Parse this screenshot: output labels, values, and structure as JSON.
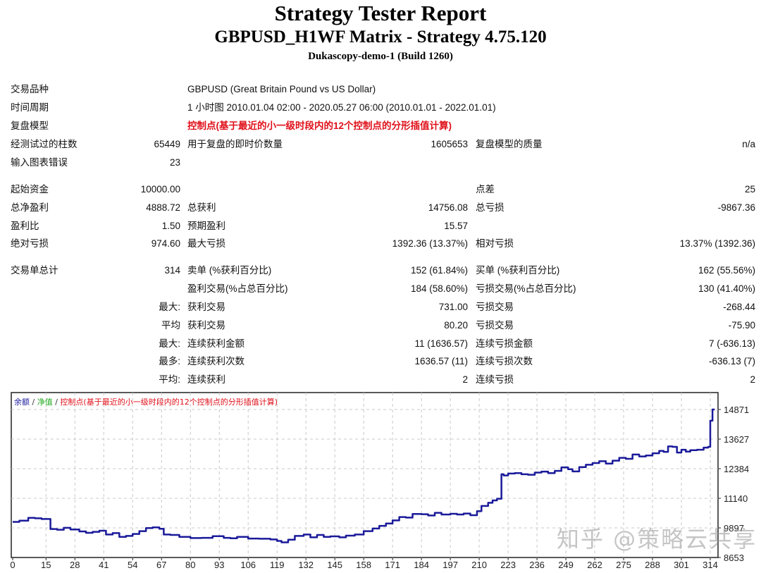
{
  "header": {
    "title": "Strategy Tester Report",
    "subtitle": "GBPUSD_H1WF Matrix - Strategy 4.75.120",
    "server": "Dukascopy-demo-1 (Build 1260)"
  },
  "settings": [
    {
      "label": "交易品种",
      "value": "GBPUSD (Great Britain Pound vs US Dollar)"
    },
    {
      "label": "时间周期",
      "value": "1 小时图 2010.01.04 02:00 - 2020.05.27 06:00 (2010.01.01 - 2022.01.01)"
    },
    {
      "label": "复盘模型",
      "value": "控制点(基于最近的小一级时段内的12个控制点的分形插值计算)"
    }
  ],
  "bars": {
    "label": "经测试过的柱数",
    "value": "65449",
    "label2": "用于复盘的即时价数量",
    "value2": "1605653",
    "label3": "复盘模型的质量",
    "value3": "n/a"
  },
  "errors": {
    "label": "输入图表错误",
    "value": "23"
  },
  "stats": {
    "initial_deposit": {
      "label": "起始资金",
      "value": "10000.00"
    },
    "spread": {
      "label": "点差",
      "value": "25"
    },
    "net_profit": {
      "label": "总净盈利",
      "value": "4888.72"
    },
    "gross_profit": {
      "label": "总获利",
      "value": "14756.08"
    },
    "gross_loss": {
      "label": "总亏损",
      "value": "-9867.36"
    },
    "profit_factor": {
      "label": "盈利比",
      "value": "1.50"
    },
    "expected_payoff": {
      "label": "预期盈利",
      "value": "15.57"
    },
    "absolute_drawdown": {
      "label": "绝对亏损",
      "value": "974.60"
    },
    "maximal_drawdown": {
      "label": "最大亏损",
      "value": "1392.36 (13.37%)"
    },
    "relative_drawdown": {
      "label": "相对亏损",
      "value": "13.37% (1392.36)"
    }
  },
  "trades": {
    "total": {
      "label": "交易单总计",
      "value": "314"
    },
    "short": {
      "label": "卖单 (%获利百分比)",
      "value": "152 (61.84%)"
    },
    "long": {
      "label": "买单 (%获利百分比)",
      "value": "162 (55.56%)"
    },
    "profit_trades": {
      "label": "盈利交易(%占总百分比)",
      "value": "184 (58.60%)"
    },
    "loss_trades": {
      "label": "亏损交易(%占总百分比)",
      "value": "130 (41.40%)"
    },
    "largest": {
      "prefix": "最大:",
      "profit_label": "获利交易",
      "profit_value": "731.00",
      "loss_label": "亏损交易",
      "loss_value": "-268.44"
    },
    "average": {
      "prefix": "平均",
      "profit_label": "获利交易",
      "profit_value": "80.20",
      "loss_label": "亏损交易",
      "loss_value": "-75.90"
    },
    "max_consec_amount": {
      "prefix": "最大:",
      "profit_label": "连续获利金额",
      "profit_value": "11 (1636.57)",
      "loss_label": "连续亏损金额",
      "loss_value": "7 (-636.13)"
    },
    "max_consec_count": {
      "prefix": "最多:",
      "profit_label": "连续获利次数",
      "profit_value": "1636.57 (11)",
      "loss_label": "连续亏损次数",
      "loss_value": "-636.13 (7)"
    },
    "avg_consec": {
      "prefix": "平均:",
      "profit_label": "连续获利",
      "profit_value": "2",
      "loss_label": "连续亏损",
      "loss_value": "2"
    }
  },
  "chart_legend": {
    "balance": "余额",
    "sep": " / ",
    "equity": "净值",
    "model": "控制点(基于最近的小一级时段内的12个控制点的分形插值计算)"
  },
  "watermark": "知乎 @策略云共享",
  "colors": {
    "balance": "#1a1a9a",
    "equity": "#22aa22",
    "model": "#e0101a",
    "grid": "#c8c8c8"
  },
  "chart_data": {
    "type": "line",
    "title": "余额 / 净值 / 控制点(基于最近的小一级时段内的12个控制点的分形插值计算)",
    "xlabel": "",
    "ylabel": "",
    "x_ticks": [
      0,
      15,
      28,
      41,
      54,
      67,
      80,
      93,
      106,
      119,
      132,
      145,
      158,
      171,
      184,
      197,
      210,
      223,
      236,
      249,
      262,
      275,
      288,
      301,
      314
    ],
    "y_ticks": [
      8653,
      9897,
      11140,
      12384,
      13627,
      14871
    ],
    "ylim": [
      8653,
      14871
    ],
    "xlim": [
      0,
      318
    ],
    "grid": true,
    "series": [
      {
        "name": "余额",
        "x": [
          0,
          3,
          7,
          10,
          13,
          17,
          20,
          23,
          26,
          30,
          33,
          36,
          39,
          42,
          45,
          48,
          51,
          54,
          57,
          60,
          63,
          66,
          68,
          71,
          75,
          80,
          85,
          90,
          95,
          98,
          101,
          106,
          111,
          116,
          119,
          121,
          124,
          127,
          131,
          134,
          137,
          140,
          143,
          147,
          150,
          154,
          158,
          162,
          165,
          168,
          171,
          174,
          177,
          180,
          184,
          187,
          190,
          193,
          197,
          200,
          203,
          206,
          209,
          211,
          214,
          216,
          218,
          220,
          221,
          223,
          226,
          229,
          232,
          235,
          238,
          241,
          244,
          247,
          250,
          252,
          255,
          258,
          261,
          264,
          267,
          270,
          273,
          276,
          279,
          282,
          285,
          288,
          291,
          293,
          295,
          297,
          299,
          301,
          303,
          305,
          308,
          311,
          313,
          314,
          315,
          316
        ],
        "values": [
          10150,
          10200,
          10320,
          10300,
          10270,
          9850,
          9820,
          9900,
          9830,
          9750,
          9690,
          9730,
          9780,
          9620,
          9680,
          9520,
          9560,
          9640,
          9760,
          9890,
          9920,
          9860,
          9620,
          9600,
          9520,
          9470,
          9480,
          9550,
          9480,
          9460,
          9520,
          9450,
          9440,
          9410,
          9350,
          9290,
          9400,
          9560,
          9620,
          9500,
          9600,
          9520,
          9540,
          9500,
          9570,
          9620,
          9760,
          9870,
          9980,
          10080,
          10210,
          10350,
          10330,
          10480,
          10470,
          10420,
          10530,
          10460,
          10490,
          10460,
          10500,
          10430,
          10600,
          10820,
          10950,
          11050,
          11120,
          12150,
          12100,
          12180,
          12200,
          12150,
          12130,
          12220,
          12260,
          12200,
          12290,
          12440,
          12360,
          12270,
          12450,
          12550,
          12620,
          12700,
          12600,
          12720,
          12840,
          12800,
          12980,
          12900,
          12940,
          13030,
          13130,
          13090,
          13320,
          13300,
          13060,
          13180,
          13100,
          13160,
          13180,
          13270,
          13300,
          14400,
          14871,
          14871
        ]
      },
      {
        "name": "净值",
        "values": []
      }
    ]
  }
}
